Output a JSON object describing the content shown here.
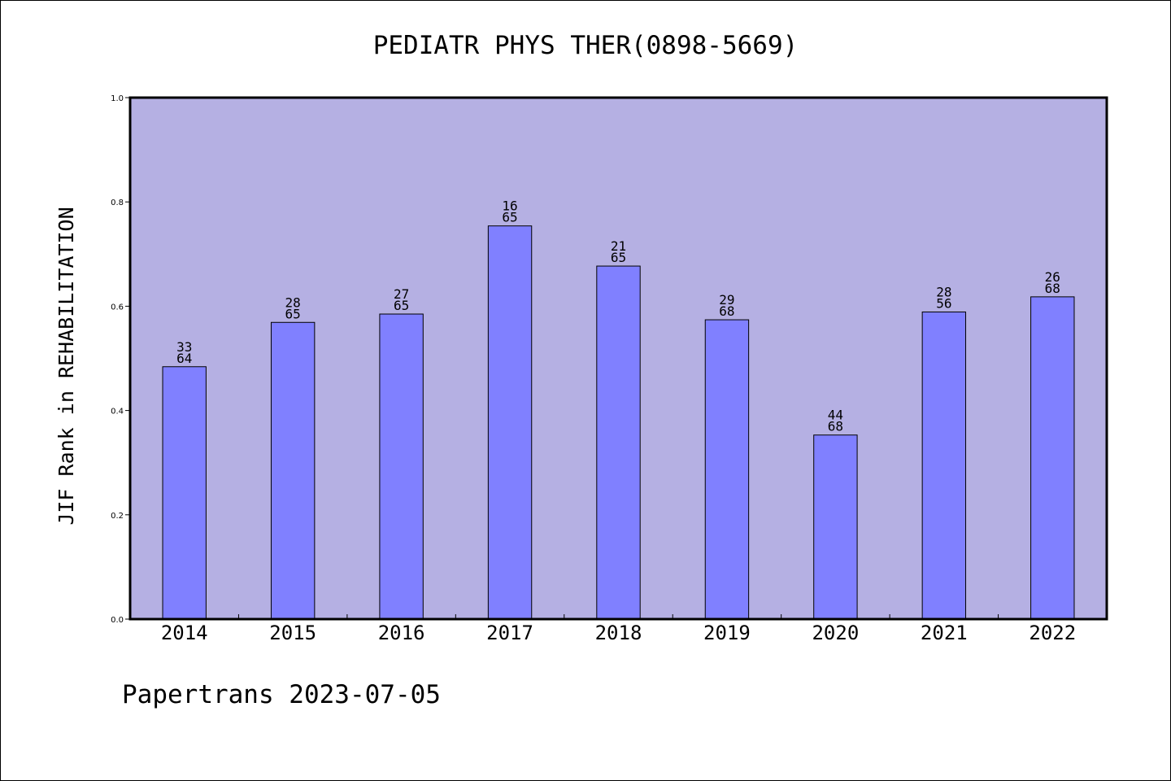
{
  "chart_data": {
    "type": "bar",
    "title": "PEDIATR PHYS THER(0898-5669)",
    "ylabel": "JIF Rank in REHABILITATION",
    "xlabel": "",
    "categories": [
      "2014",
      "2015",
      "2016",
      "2017",
      "2018",
      "2019",
      "2020",
      "2021",
      "2022"
    ],
    "values": [
      0.484,
      0.569,
      0.585,
      0.754,
      0.677,
      0.574,
      0.353,
      0.589,
      0.618
    ],
    "ranks": [
      "33",
      "28",
      "27",
      "16",
      "21",
      "29",
      "44",
      "28",
      "26"
    ],
    "totals": [
      "64",
      "65",
      "65",
      "65",
      "65",
      "68",
      "68",
      "56",
      "68"
    ],
    "ylim": [
      0,
      1.0
    ],
    "yticks": [
      "0.0",
      "0.2",
      "0.4",
      "0.6",
      "0.8",
      "1.0"
    ],
    "grid": false,
    "colors": {
      "plot_background": "#b5b0e3",
      "bar_fill": "#8080ff",
      "bar_stroke": "#000000"
    }
  },
  "footer": {
    "text": "Papertrans 2023-07-05"
  }
}
